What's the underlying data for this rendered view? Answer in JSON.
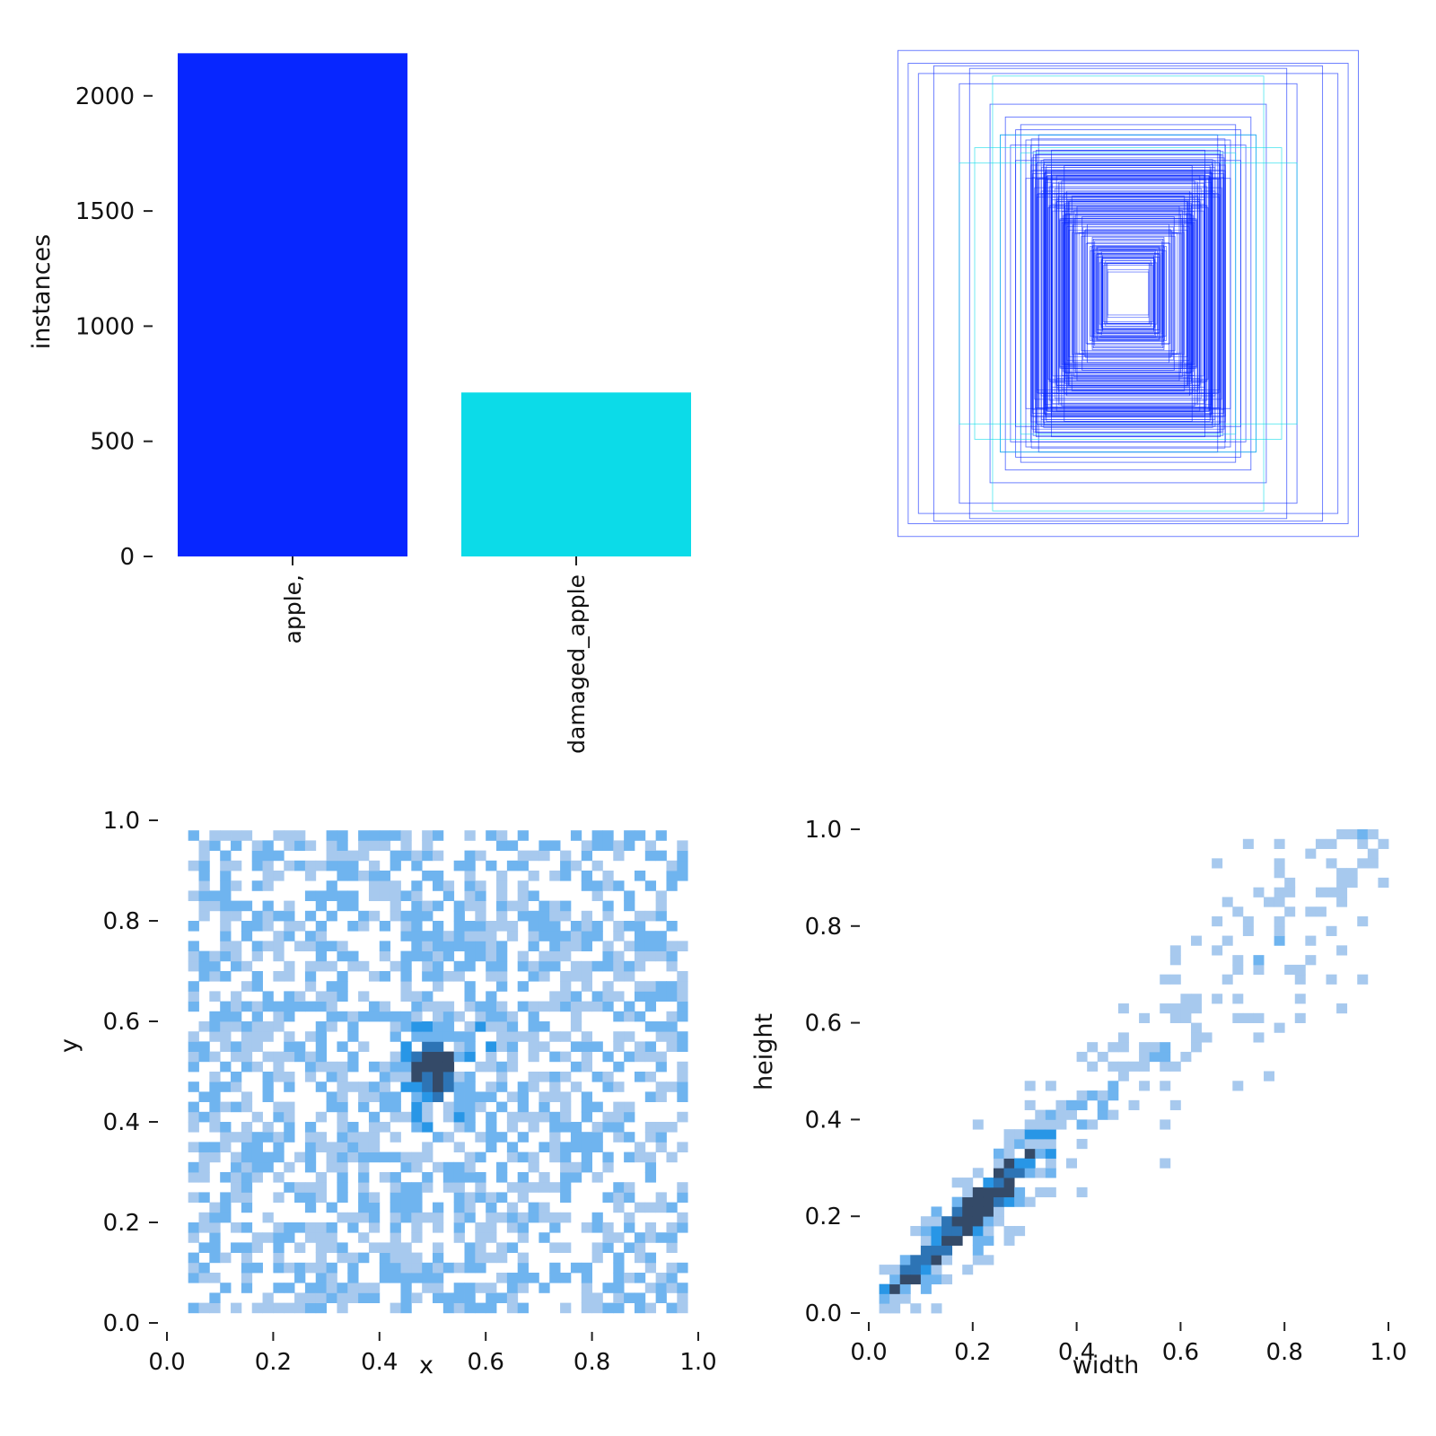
{
  "chart_data": [
    {
      "type": "bar",
      "ylabel": "instances",
      "categories": [
        "apple,",
        "damaged_apple"
      ],
      "values": [
        2185,
        712
      ],
      "colors": [
        "#0726ff",
        "#0cdbe8"
      ],
      "yticks": [
        0,
        500,
        1000,
        1500,
        2000
      ],
      "ylim": [
        0,
        2200
      ],
      "grid": false
    },
    {
      "type": "scatter",
      "description_kind": "bounding boxes centered at origin",
      "xlim": [
        0,
        1
      ],
      "ylim": [
        0,
        1
      ],
      "series": [
        {
          "class": "apple,",
          "color": "#0726ff",
          "boxes_wh": [
            [
              0.9,
              0.95
            ],
            [
              0.86,
              0.9
            ],
            [
              0.76,
              0.89
            ],
            [
              0.82,
              0.86
            ],
            [
              0.62,
              0.88
            ],
            [
              0.66,
              0.82
            ],
            [
              0.54,
              0.74
            ],
            [
              0.48,
              0.69
            ],
            [
              0.44,
              0.64
            ],
            [
              0.42,
              0.66
            ],
            [
              0.4,
              0.6
            ],
            [
              0.38,
              0.58
            ],
            [
              0.36,
              0.56
            ],
            [
              0.34,
              0.52
            ],
            [
              0.32,
              0.5
            ],
            [
              0.3,
              0.48
            ],
            [
              0.28,
              0.46
            ],
            [
              0.26,
              0.44
            ],
            [
              0.24,
              0.4
            ],
            [
              0.22,
              0.38
            ],
            [
              0.2,
              0.34
            ],
            [
              0.18,
              0.3
            ],
            [
              0.16,
              0.27
            ],
            [
              0.14,
              0.22
            ],
            [
              0.12,
              0.18
            ],
            [
              0.1,
              0.15
            ],
            [
              0.38,
              0.48
            ],
            [
              0.44,
              0.52
            ],
            [
              0.3,
              0.56
            ],
            [
              0.35,
              0.62
            ],
            [
              0.25,
              0.5
            ],
            [
              0.4,
              0.45
            ],
            [
              0.34,
              0.4
            ],
            [
              0.28,
              0.36
            ],
            [
              0.46,
              0.58
            ],
            [
              0.5,
              0.62
            ]
          ]
        },
        {
          "class": "damaged_apple",
          "color": "#0cdbe8",
          "boxes_wh": [
            [
              0.66,
              0.51
            ],
            [
              0.6,
              0.57
            ],
            [
              0.53,
              0.85
            ],
            [
              0.5,
              0.62
            ],
            [
              0.42,
              0.55
            ]
          ]
        }
      ]
    },
    {
      "type": "heatmap",
      "xlabel": "x",
      "ylabel": "y",
      "xlim": [
        0,
        1
      ],
      "ylim": [
        0,
        1
      ],
      "xticks": [
        "0.0",
        "0.2",
        "0.4",
        "0.6",
        "0.8",
        "1.0"
      ],
      "yticks": [
        "0.0",
        "0.2",
        "0.4",
        "0.6",
        "0.8",
        "1.0"
      ],
      "bins": 50,
      "distribution": "roughly uniform over [0.05,0.97]x[0.04,0.97] with peak near (0.5, 0.5)",
      "color_scale": [
        "#a7c9ee",
        "#6fb4ef",
        "#2896e6",
        "#2d74b5",
        "#344a68"
      ]
    },
    {
      "type": "heatmap",
      "xlabel": "width",
      "ylabel": "height",
      "xlim": [
        0,
        1
      ],
      "ylim": [
        0,
        1
      ],
      "xticks": [
        "0.0",
        "0.2",
        "0.4",
        "0.6",
        "0.8",
        "1.0"
      ],
      "yticks": [
        "0.0",
        "0.2",
        "0.4",
        "0.6",
        "0.8",
        "1.0"
      ],
      "bins": 50,
      "distribution": "correlated, height approx. equal to width, densest near (0.17, 0.21)",
      "color_scale": [
        "#a7c9ee",
        "#6fb4ef",
        "#2896e6",
        "#2d74b5",
        "#344a68"
      ]
    }
  ]
}
